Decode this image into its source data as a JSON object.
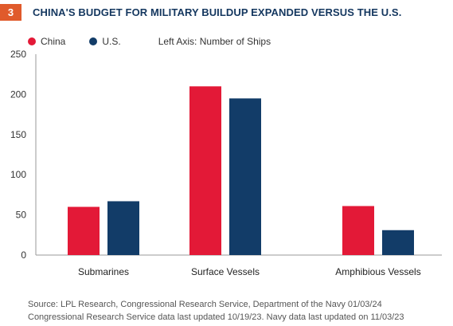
{
  "header": {
    "figure_number": "3",
    "title": "CHINA'S BUDGET FOR MILITARY BUILDUP EXPANDED VERSUS THE U.S."
  },
  "legend": {
    "axis_note": "Left Axis: Number of Ships"
  },
  "colors": {
    "china": "#e31937",
    "us": "#123c68",
    "badge": "#e05a2b",
    "title": "#14375f",
    "axis": "#9a9a9a"
  },
  "chart_data": {
    "type": "bar",
    "categories": [
      "Submarines",
      "Surface Vessels",
      "Amphibious Vessels"
    ],
    "series": [
      {
        "name": "China",
        "values": [
          60,
          210,
          61
        ]
      },
      {
        "name": "U.S.",
        "values": [
          67,
          195,
          31
        ]
      }
    ],
    "y_ticks": [
      "0",
      "50",
      "100",
      "150",
      "200",
      "250"
    ],
    "ylim": [
      0,
      250
    ],
    "grid": false,
    "legend_position": "top-left"
  },
  "source": {
    "line1": "Source: LPL Research, Congressional Research Service, Department of the Navy 01/03/24",
    "line2": "Congressional Research Service data last updated 10/19/23. Navy data last updated on 11/03/23"
  }
}
